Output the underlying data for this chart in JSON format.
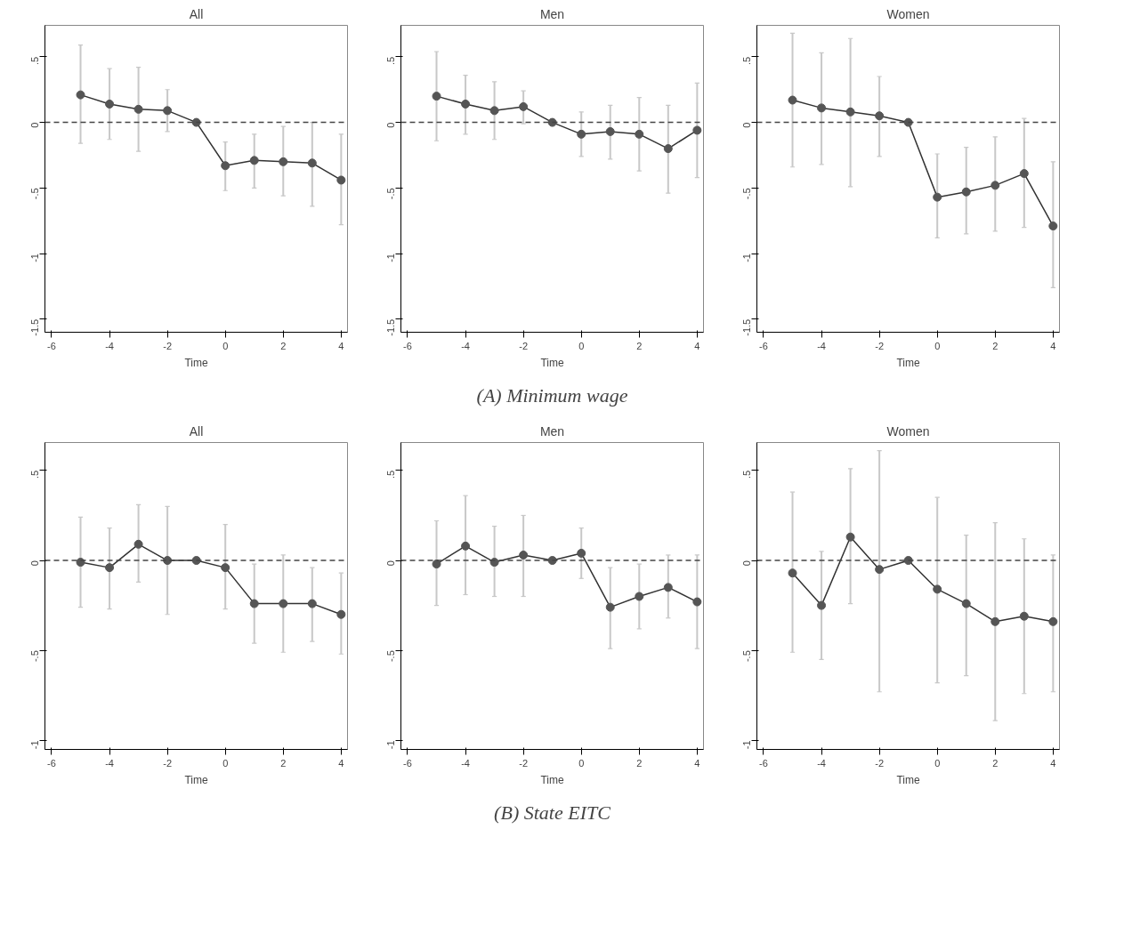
{
  "chart_data": [
    {
      "type": "line",
      "title": "All",
      "xlabel": "Time",
      "x": [
        -5,
        -4,
        -3,
        -2,
        -1,
        0,
        1,
        2,
        3,
        4
      ],
      "xlim": [
        -6.23,
        4.22
      ],
      "xticks": [
        -6,
        -4,
        -2,
        0,
        2,
        4
      ],
      "ylim": [
        -1.6,
        0.74
      ],
      "yticks": [
        {
          "value": -1.5,
          "label": "-1.5"
        },
        {
          "value": -1,
          "label": "-1"
        },
        {
          "value": -0.5,
          "label": "-.5"
        },
        {
          "value": 0,
          "label": "0"
        },
        {
          "value": 0.5,
          "label": ".5"
        }
      ],
      "marker": "circle",
      "line_style": "solid",
      "ref_lines": [
        {
          "axis": "y",
          "value": 0,
          "line_style": "dashed"
        }
      ],
      "series": [
        {
          "color": "#555555",
          "values": [
            0.21,
            0.14,
            0.1,
            0.09,
            0,
            -0.33,
            -0.29,
            -0.3,
            -0.31,
            -0.44
          ],
          "errors": [
            [
              -0.16,
              0.59
            ],
            [
              -0.13,
              0.41
            ],
            [
              -0.22,
              0.42
            ],
            [
              -0.07,
              0.25
            ],
            null,
            [
              -0.52,
              -0.15
            ],
            [
              -0.5,
              -0.09
            ],
            [
              -0.56,
              -0.03
            ],
            [
              -0.64,
              0.0
            ],
            [
              -0.78,
              -0.09
            ]
          ]
        }
      ]
    },
    {
      "type": "line",
      "title": "Men",
      "xlabel": "Time",
      "annotations": [
        "(A) Minimum wage"
      ],
      "x": [
        -5,
        -4,
        -3,
        -2,
        -1,
        0,
        1,
        2,
        3,
        4
      ],
      "xlim": [
        -6.23,
        4.22
      ],
      "xticks": [
        -6,
        -4,
        -2,
        0,
        2,
        4
      ],
      "ylim": [
        -1.6,
        0.74
      ],
      "yticks": [
        {
          "value": -1.5,
          "label": "-1.5"
        },
        {
          "value": -1,
          "label": "-1"
        },
        {
          "value": -0.5,
          "label": "-.5"
        },
        {
          "value": 0,
          "label": "0"
        },
        {
          "value": 0.5,
          "label": ".5"
        }
      ],
      "marker": "circle",
      "line_style": "solid",
      "ref_lines": [
        {
          "axis": "y",
          "value": 0,
          "line_style": "dashed"
        }
      ],
      "series": [
        {
          "color": "#555555",
          "values": [
            0.2,
            0.14,
            0.09,
            0.12,
            0,
            -0.09,
            -0.07,
            -0.09,
            -0.2,
            -0.06
          ],
          "errors": [
            [
              -0.14,
              0.54
            ],
            [
              -0.09,
              0.36
            ],
            [
              -0.13,
              0.31
            ],
            [
              -0.01,
              0.24
            ],
            null,
            [
              -0.26,
              0.08
            ],
            [
              -0.28,
              0.13
            ],
            [
              -0.37,
              0.19
            ],
            [
              -0.54,
              0.13
            ],
            [
              -0.42,
              0.3
            ]
          ]
        }
      ]
    },
    {
      "type": "line",
      "title": "Women",
      "xlabel": "Time",
      "x": [
        -5,
        -4,
        -3,
        -2,
        -1,
        0,
        1,
        2,
        3,
        4
      ],
      "xlim": [
        -6.23,
        4.22
      ],
      "xticks": [
        -6,
        -4,
        -2,
        0,
        2,
        4
      ],
      "ylim": [
        -1.6,
        0.74
      ],
      "yticks": [
        {
          "value": -1.5,
          "label": "-1.5"
        },
        {
          "value": -1,
          "label": "-1"
        },
        {
          "value": -0.5,
          "label": "-.5"
        },
        {
          "value": 0,
          "label": "0"
        },
        {
          "value": 0.5,
          "label": ".5"
        }
      ],
      "marker": "circle",
      "line_style": "solid",
      "ref_lines": [
        {
          "axis": "y",
          "value": 0,
          "line_style": "dashed"
        }
      ],
      "series": [
        {
          "color": "#555555",
          "values": [
            0.17,
            0.11,
            0.08,
            0.05,
            0,
            -0.57,
            -0.53,
            -0.48,
            -0.39,
            -0.79
          ],
          "errors": [
            [
              -0.34,
              0.68
            ],
            [
              -0.32,
              0.53
            ],
            [
              -0.49,
              0.64
            ],
            [
              -0.26,
              0.35
            ],
            null,
            [
              -0.88,
              -0.24
            ],
            [
              -0.85,
              -0.19
            ],
            [
              -0.83,
              -0.11
            ],
            [
              -0.8,
              0.03
            ],
            [
              -1.26,
              -0.3
            ]
          ]
        }
      ]
    },
    {
      "type": "line",
      "title": "All",
      "xlabel": "Time",
      "x": [
        -5,
        -4,
        -3,
        -2,
        -1,
        0,
        1,
        2,
        3,
        4
      ],
      "xlim": [
        -6.23,
        4.22
      ],
      "xticks": [
        -6,
        -4,
        -2,
        0,
        2,
        4
      ],
      "ylim": [
        -1.05,
        0.655
      ],
      "yticks": [
        {
          "value": -1,
          "label": "-1"
        },
        {
          "value": -0.5,
          "label": "-.5"
        },
        {
          "value": 0,
          "label": "0"
        },
        {
          "value": 0.5,
          "label": ".5"
        }
      ],
      "marker": "circle",
      "line_style": "solid",
      "ref_lines": [
        {
          "axis": "y",
          "value": 0,
          "line_style": "dashed"
        }
      ],
      "series": [
        {
          "color": "#555555",
          "values": [
            -0.01,
            -0.04,
            0.09,
            0.0,
            0,
            -0.04,
            -0.24,
            -0.24,
            -0.24,
            -0.3
          ],
          "errors": [
            [
              -0.26,
              0.24
            ],
            [
              -0.27,
              0.18
            ],
            [
              -0.12,
              0.31
            ],
            [
              -0.3,
              0.3
            ],
            null,
            [
              -0.27,
              0.2
            ],
            [
              -0.46,
              -0.02
            ],
            [
              -0.51,
              0.03
            ],
            [
              -0.45,
              -0.04
            ],
            [
              -0.52,
              -0.07
            ]
          ]
        }
      ]
    },
    {
      "type": "line",
      "title": "Men",
      "xlabel": "Time",
      "annotations": [
        "(B) State EITC"
      ],
      "x": [
        -5,
        -4,
        -3,
        -2,
        -1,
        0,
        1,
        2,
        3,
        4
      ],
      "xlim": [
        -6.23,
        4.22
      ],
      "xticks": [
        -6,
        -4,
        -2,
        0,
        2,
        4
      ],
      "ylim": [
        -1.05,
        0.655
      ],
      "yticks": [
        {
          "value": -1,
          "label": "-1"
        },
        {
          "value": -0.5,
          "label": "-.5"
        },
        {
          "value": 0,
          "label": "0"
        },
        {
          "value": 0.5,
          "label": ".5"
        }
      ],
      "marker": "circle",
      "line_style": "solid",
      "ref_lines": [
        {
          "axis": "y",
          "value": 0,
          "line_style": "dashed"
        }
      ],
      "series": [
        {
          "color": "#555555",
          "values": [
            -0.02,
            0.08,
            -0.01,
            0.03,
            0,
            0.04,
            -0.26,
            -0.2,
            -0.15,
            -0.23
          ],
          "errors": [
            [
              -0.25,
              0.22
            ],
            [
              -0.19,
              0.36
            ],
            [
              -0.2,
              0.19
            ],
            [
              -0.2,
              0.25
            ],
            null,
            [
              -0.1,
              0.18
            ],
            [
              -0.49,
              -0.04
            ],
            [
              -0.38,
              -0.02
            ],
            [
              -0.32,
              0.03
            ],
            [
              -0.49,
              0.03
            ]
          ]
        }
      ]
    },
    {
      "type": "line",
      "title": "Women",
      "xlabel": "Time",
      "x": [
        -5,
        -4,
        -3,
        -2,
        -1,
        0,
        1,
        2,
        3,
        4
      ],
      "xlim": [
        -6.23,
        4.22
      ],
      "xticks": [
        -6,
        -4,
        -2,
        0,
        2,
        4
      ],
      "ylim": [
        -1.05,
        0.655
      ],
      "yticks": [
        {
          "value": -1,
          "label": "-1"
        },
        {
          "value": -0.5,
          "label": "-.5"
        },
        {
          "value": 0,
          "label": "0"
        },
        {
          "value": 0.5,
          "label": ".5"
        }
      ],
      "marker": "circle",
      "line_style": "solid",
      "ref_lines": [
        {
          "axis": "y",
          "value": 0,
          "line_style": "dashed"
        }
      ],
      "series": [
        {
          "color": "#555555",
          "values": [
            -0.07,
            -0.25,
            0.13,
            -0.05,
            0,
            -0.16,
            -0.24,
            -0.34,
            -0.31,
            -0.34
          ],
          "errors": [
            [
              -0.51,
              0.38
            ],
            [
              -0.55,
              0.05
            ],
            [
              -0.24,
              0.51
            ],
            [
              -0.73,
              0.61
            ],
            null,
            [
              -0.68,
              0.35
            ],
            [
              -0.64,
              0.14
            ],
            [
              -0.89,
              0.21
            ],
            [
              -0.74,
              0.12
            ],
            [
              -0.73,
              0.03
            ]
          ]
        }
      ]
    }
  ]
}
